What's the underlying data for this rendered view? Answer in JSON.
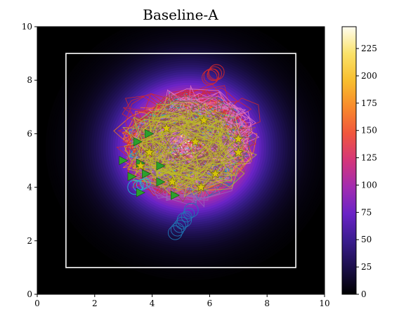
{
  "chart_data": {
    "type": "heatmap",
    "title": "Baseline-A",
    "xlabel": "",
    "ylabel": "",
    "xlim": [
      0,
      10
    ],
    "ylim": [
      0,
      10
    ],
    "x_ticks": [
      "0",
      "2",
      "4",
      "6",
      "8",
      "10"
    ],
    "y_ticks": [
      "0",
      "2",
      "4",
      "6",
      "8",
      "10"
    ],
    "colorbar": {
      "range": [
        0,
        245
      ],
      "ticks": [
        "0",
        "25",
        "50",
        "75",
        "100",
        "125",
        "150",
        "175",
        "200",
        "225"
      ],
      "colormap": [
        "#000000",
        "#1b0f4a",
        "#3a1d8e",
        "#6a23c6",
        "#a22cb0",
        "#d4367a",
        "#f0563d",
        "#f88a2b",
        "#f8bf2f",
        "#fae26a",
        "#fffdf0"
      ]
    },
    "field": {
      "center": [
        5.3,
        5.5
      ],
      "peak": 245,
      "spread": 1.45
    },
    "boundary_box": {
      "x": [
        1,
        9
      ],
      "y": [
        1,
        9
      ],
      "color": "#ffffff"
    },
    "start_markers": {
      "shape": "triangle",
      "color": "#2ca02c",
      "points": [
        [
          3.0,
          5.0
        ],
        [
          3.3,
          4.4
        ],
        [
          3.6,
          3.8
        ],
        [
          3.5,
          5.7
        ],
        [
          3.8,
          4.5
        ],
        [
          3.9,
          6.0
        ],
        [
          4.3,
          4.2
        ],
        [
          4.3,
          4.8
        ],
        [
          4.8,
          3.7
        ],
        [
          3.6,
          4.9
        ]
      ]
    },
    "goal_markers": {
      "shape": "star",
      "color": "#d4c40a",
      "points": [
        [
          4.5,
          6.2
        ],
        [
          5.8,
          6.5
        ],
        [
          7.0,
          5.8
        ],
        [
          7.0,
          5.3
        ],
        [
          3.9,
          5.3
        ],
        [
          4.7,
          4.2
        ],
        [
          5.7,
          4.0
        ],
        [
          6.2,
          4.5
        ],
        [
          5.5,
          5.7
        ],
        [
          3.6,
          4.8
        ]
      ]
    },
    "trajectory_colors": [
      "#ff7f0e",
      "#1f77b4",
      "#17becf",
      "#d62728",
      "#9467bd",
      "#e377c2",
      "#8c564b",
      "#bcbd22"
    ]
  }
}
